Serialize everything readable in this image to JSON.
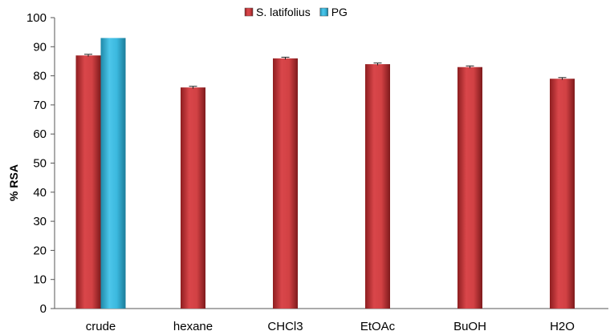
{
  "chart_data": {
    "type": "bar",
    "title": "",
    "xlabel": "",
    "ylabel": "% RSA",
    "ylim": [
      0,
      100
    ],
    "yticks": [
      0,
      10,
      20,
      30,
      40,
      50,
      60,
      70,
      80,
      90,
      100
    ],
    "categories": [
      "crude",
      "hexane",
      "CHCl3",
      "EtOAc",
      "BuOH",
      "H2O"
    ],
    "series": [
      {
        "name": "S. latifolius",
        "color": "#c0393b",
        "values": [
          87,
          76,
          86,
          84,
          83,
          79
        ],
        "errors": [
          0.4,
          0.4,
          0.4,
          0.4,
          0.4,
          0.4
        ]
      },
      {
        "name": "PG",
        "color": "#2ea8cc",
        "values": [
          93,
          null,
          null,
          null,
          null,
          null
        ],
        "errors": [
          null,
          null,
          null,
          null,
          null,
          null
        ]
      }
    ],
    "grid": false,
    "legend_position": "top-center"
  }
}
